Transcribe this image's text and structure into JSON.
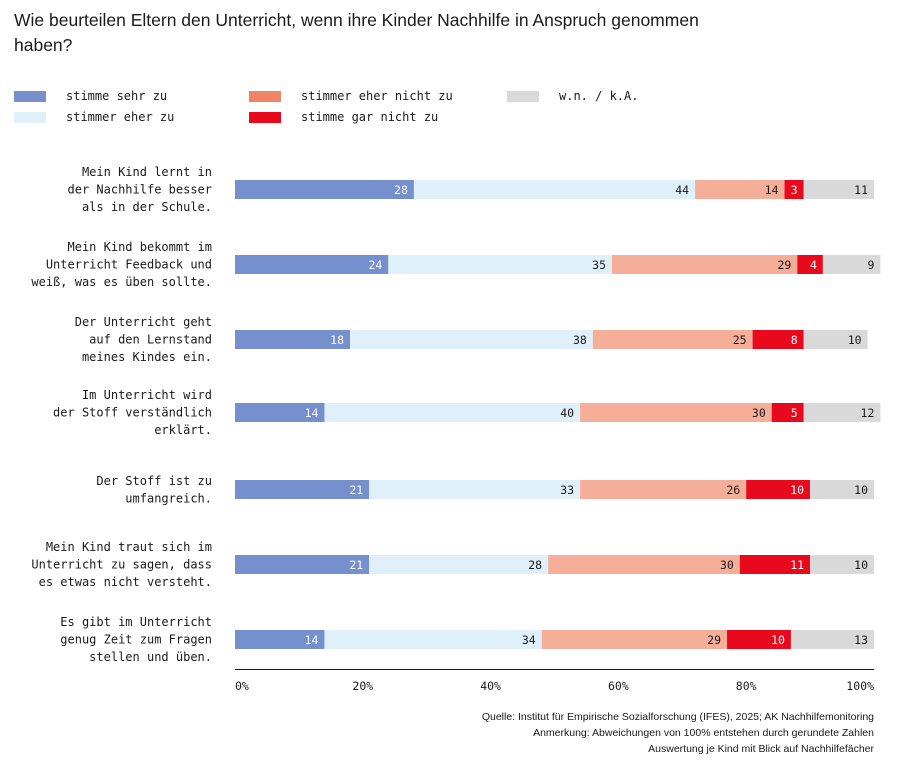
{
  "chart_data": {
    "type": "bar",
    "orientation": "horizontal",
    "stacked": true,
    "title": "Wie beurteilen Eltern den Unterricht, wenn ihre Kinder Nachhilfe in Anspruch genommen haben?",
    "categories": [
      "Mein Kind lernt in der Nachhilfe besser als in der Schule.",
      "Mein Kind bekommt im Unterricht Feedback und weiß, was es üben sollte.",
      "Der Unterricht geht auf den Lernstand meines Kindes ein.",
      "Im Unterricht wird der Stoff verständlich erklärt.",
      "Der Stoff ist zu umfangreich.",
      "Mein Kind traut sich im Unterricht zu sagen, dass es etwas nicht versteht.",
      "Es gibt im Unterricht genug Zeit zum Fragen stellen und üben."
    ],
    "category_lines": [
      [
        "Mein Kind lernt in",
        "der Nachhilfe besser",
        "als in der Schule."
      ],
      [
        "Mein Kind bekommt im",
        "Unterricht Feedback und",
        "weiß, was es üben sollte."
      ],
      [
        "Der Unterricht geht",
        "auf den Lernstand",
        "meines Kindes ein."
      ],
      [
        "Im Unterricht wird",
        "der Stoff verständlich",
        "erklärt."
      ],
      [
        "Der Stoff ist zu",
        "umfangreich."
      ],
      [
        "Mein Kind traut sich im",
        "Unterricht zu sagen, dass",
        "es etwas nicht versteht."
      ],
      [
        "Es gibt im Unterricht",
        "genug Zeit zum Fragen",
        "stellen und üben."
      ]
    ],
    "series": [
      {
        "name": "stimme sehr zu",
        "values": [
          28,
          24,
          18,
          14,
          21,
          21,
          14
        ]
      },
      {
        "name": "stimmer eher zu",
        "values": [
          44,
          35,
          38,
          40,
          33,
          28,
          34
        ]
      },
      {
        "name": "stimmer eher nicht zu",
        "values": [
          14,
          29,
          25,
          30,
          26,
          30,
          29
        ]
      },
      {
        "name": "stimme gar nicht zu",
        "values": [
          3,
          4,
          8,
          5,
          10,
          11,
          10
        ]
      },
      {
        "name": "w.n. / k.A.",
        "values": [
          11,
          9,
          10,
          12,
          10,
          10,
          13
        ]
      }
    ],
    "colors": [
      "#7590cc",
      "#dff0fb",
      "#f5ae98",
      "#e8091c",
      "#d9d9d9"
    ],
    "label_colors": [
      "#ffffff",
      "#1a1a1a",
      "#1a1a1a",
      "#ffffff",
      "#1a1a1a"
    ],
    "legend_colors": [
      "#7590cc",
      "#dff0fb",
      "#f08466",
      "#e8091c",
      "#d9d9d9"
    ],
    "xlim": [
      0,
      100
    ],
    "xticks": [
      "0%",
      "20%",
      "40%",
      "60%",
      "80%",
      "100%"
    ],
    "grid": false,
    "legend_position": "top"
  },
  "footer": {
    "source": "Quelle: Institut für Empirische Sozialforschung (IFES), 2025; AK Nachhilfemonitoring",
    "note": "Anmerkung: Abweichungen von 100% entstehen durch gerundete Zahlen",
    "scope": "Auswertung je Kind mit Blick auf Nachhilfefächer"
  }
}
